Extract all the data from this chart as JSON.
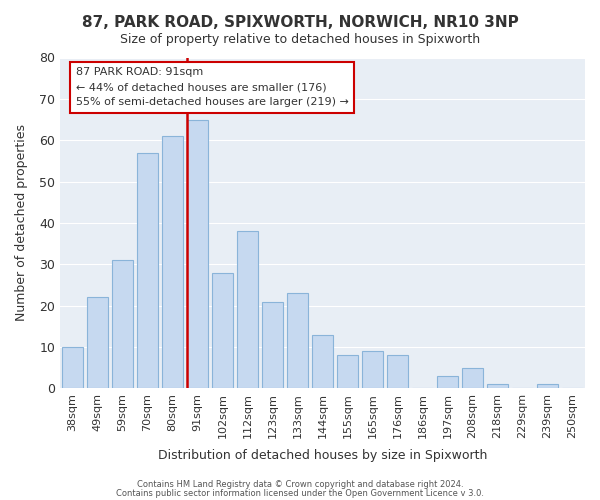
{
  "title": "87, PARK ROAD, SPIXWORTH, NORWICH, NR10 3NP",
  "subtitle": "Size of property relative to detached houses in Spixworth",
  "xlabel": "Distribution of detached houses by size in Spixworth",
  "ylabel": "Number of detached properties",
  "footer_line1": "Contains HM Land Registry data © Crown copyright and database right 2024.",
  "footer_line2": "Contains public sector information licensed under the Open Government Licence v 3.0.",
  "bar_labels": [
    "38sqm",
    "49sqm",
    "59sqm",
    "70sqm",
    "80sqm",
    "91sqm",
    "102sqm",
    "112sqm",
    "123sqm",
    "133sqm",
    "144sqm",
    "155sqm",
    "165sqm",
    "176sqm",
    "186sqm",
    "197sqm",
    "208sqm",
    "218sqm",
    "229sqm",
    "239sqm",
    "250sqm"
  ],
  "bar_values": [
    10,
    22,
    31,
    57,
    61,
    65,
    28,
    38,
    21,
    23,
    13,
    8,
    9,
    8,
    0,
    3,
    5,
    1,
    0,
    1,
    0
  ],
  "bar_color": "#c6d9f0",
  "bar_edge_color": "#8ab4d9",
  "highlight_index": 5,
  "highlight_line_color": "#cc0000",
  "ylim": [
    0,
    80
  ],
  "yticks": [
    0,
    10,
    20,
    30,
    40,
    50,
    60,
    70,
    80
  ],
  "annotation_title": "87 PARK ROAD: 91sqm",
  "annotation_line1": "← 44% of detached houses are smaller (176)",
  "annotation_line2": "55% of semi-detached houses are larger (219) →",
  "annotation_box_color": "#ffffff",
  "annotation_box_edge": "#cc0000"
}
